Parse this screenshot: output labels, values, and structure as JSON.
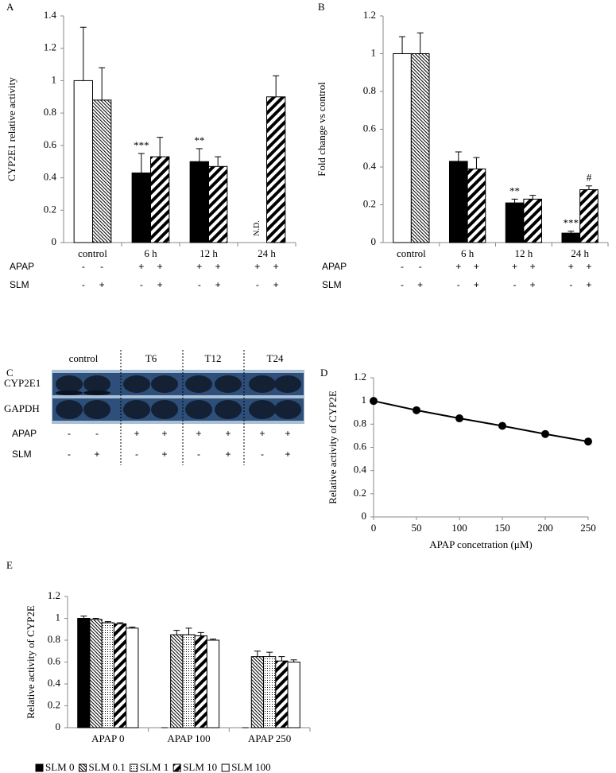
{
  "chart_data": [
    {
      "type": "bar",
      "panel_label": "A",
      "ylabel": "CYP2E1 relative activity",
      "categories": [
        "control",
        "6 h",
        "12 h",
        "24 h"
      ],
      "series": [
        {
          "values": [
            1.0,
            0.43,
            0.5,
            null
          ],
          "errors": [
            0.33,
            0.12,
            0.08,
            null
          ],
          "fills": [
            "white",
            "black",
            "black",
            "black"
          ]
        },
        {
          "values": [
            0.88,
            0.53,
            0.47,
            0.9
          ],
          "errors": [
            0.2,
            0.12,
            0.06,
            0.13
          ],
          "fills": [
            "fine-hatch",
            "hatch",
            "hatch",
            "hatch"
          ]
        }
      ],
      "annotations": [
        {
          "text": "***",
          "category": 1,
          "series": 0
        },
        {
          "text": "**",
          "category": 2,
          "series": 0
        },
        {
          "text": "N.D.",
          "category": 3,
          "series": 0
        }
      ],
      "ylim": [
        0,
        1.4
      ],
      "yticks": [
        0,
        0.2,
        0.4,
        0.6,
        0.8,
        1,
        1.2,
        1.4
      ],
      "table": [
        {
          "label": "APAP",
          "cells": [
            "-",
            "-",
            "+",
            "+",
            "+",
            "+",
            "+",
            "+"
          ]
        },
        {
          "label": "SLM",
          "cells": [
            "-",
            "+",
            "-",
            "+",
            "-",
            "+",
            "-",
            "+"
          ]
        }
      ]
    },
    {
      "type": "bar",
      "panel_label": "B",
      "ylabel": "Fold change vs control",
      "categories": [
        "control",
        "6 h",
        "12 h",
        "24 h"
      ],
      "series": [
        {
          "values": [
            1.0,
            0.43,
            0.21,
            0.05
          ],
          "errors": [
            0.09,
            0.05,
            0.02,
            0.01
          ],
          "fills": [
            "white",
            "black",
            "black",
            "black"
          ]
        },
        {
          "values": [
            1.0,
            0.39,
            0.23,
            0.28
          ],
          "errors": [
            0.11,
            0.06,
            0.02,
            0.02
          ],
          "fills": [
            "fine-hatch",
            "hatch",
            "hatch",
            "hatch"
          ]
        }
      ],
      "annotations": [
        {
          "text": "**",
          "category": 2,
          "series": 0
        },
        {
          "text": "***",
          "category": 3,
          "series": 0
        },
        {
          "text": "#",
          "category": 3,
          "series": 1
        }
      ],
      "ylim": [
        0,
        1.2
      ],
      "yticks": [
        0,
        0.2,
        0.4,
        0.6,
        0.8,
        1,
        1.2
      ],
      "table": [
        {
          "label": "APAP",
          "cells": [
            "-",
            "-",
            "+",
            "+",
            "+",
            "+",
            "+",
            "+"
          ]
        },
        {
          "label": "SLM",
          "cells": [
            "-",
            "+",
            "-",
            "+",
            "-",
            "+",
            "-",
            "+"
          ]
        }
      ]
    },
    {
      "type": "line",
      "panel_label": "D",
      "ylabel": "Relative activity of CYP2E",
      "xlabel": "APAP concetration (μM)",
      "x": [
        0,
        50,
        100,
        150,
        200,
        250
      ],
      "values": [
        1.0,
        0.92,
        0.85,
        0.785,
        0.715,
        0.65
      ],
      "errors": [
        0.01,
        0.01,
        0.01,
        0.01,
        0.03,
        0.01
      ],
      "color": "#000000",
      "xlim": [
        0,
        250
      ],
      "xticks": [
        0,
        50,
        100,
        150,
        200,
        250
      ],
      "ylim": [
        0,
        1.2
      ],
      "yticks": [
        0,
        0.2,
        0.4,
        0.6,
        0.8,
        1,
        1.2
      ]
    },
    {
      "type": "bar",
      "panel_label": "E",
      "ylabel": "Relative activity of CYP2E",
      "categories": [
        "APAP 0",
        "APAP 100",
        "APAP 250"
      ],
      "series": [
        {
          "name": "SLM 0",
          "values": [
            1.0,
            0,
            0
          ],
          "errors": [
            0.02,
            0,
            0
          ],
          "fill": "black"
        },
        {
          "name": "SLM 0.1",
          "values": [
            0.99,
            0.85,
            0.65
          ],
          "errors": [
            0.01,
            0.04,
            0.05
          ],
          "fill": "fine-hatch"
        },
        {
          "name": "SLM 1",
          "values": [
            0.96,
            0.85,
            0.65
          ],
          "errors": [
            0.01,
            0.06,
            0.04
          ],
          "fill": "dots"
        },
        {
          "name": "SLM 10",
          "values": [
            0.95,
            0.84,
            0.61
          ],
          "errors": [
            0.01,
            0.03,
            0.04
          ],
          "fill": "hatch"
        },
        {
          "name": "SLM 100",
          "values": [
            0.91,
            0.8,
            0.6
          ],
          "errors": [
            0.01,
            0.01,
            0.02
          ],
          "fill": "white"
        }
      ],
      "legend": "bottom",
      "ylim": [
        0,
        1.2
      ],
      "yticks": [
        0,
        0.2,
        0.4,
        0.6,
        0.8,
        1,
        1.2
      ]
    }
  ],
  "blot": {
    "panel_label": "C",
    "groups": [
      "control",
      "T6",
      "T12",
      "T24"
    ],
    "rows": [
      "CYP2E1",
      "GAPDH"
    ],
    "conditions": [
      {
        "label": "APAP",
        "cells": [
          "-",
          "-",
          "+",
          "+",
          "+",
          "+",
          "+",
          "+"
        ]
      },
      {
        "label": "SLM",
        "cells": [
          "-",
          "+",
          "-",
          "+",
          "-",
          "+",
          "-",
          "+"
        ]
      }
    ]
  }
}
